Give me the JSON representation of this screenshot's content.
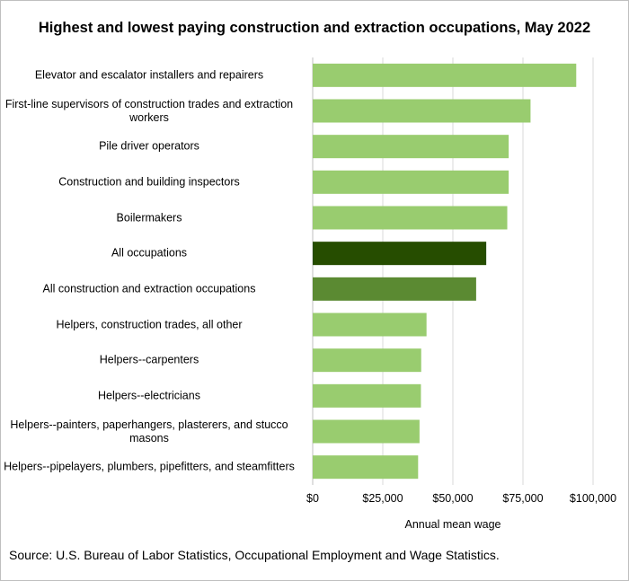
{
  "chart_data": {
    "type": "bar",
    "orientation": "horizontal",
    "title": "Highest and lowest paying construction and extraction occupations, May 2022",
    "categories": [
      "Elevator and escalator installers and repairers",
      "First-line supervisors of construction trades and extraction workers",
      "Pile driver operators",
      "Construction and building inspectors",
      "Boilermakers",
      "All occupations",
      "All construction and extraction occupations",
      "Helpers, construction trades, all other",
      "Helpers--carpenters",
      "Helpers--electricians",
      "Helpers--painters, paperhangers, plasterers, and stucco masons",
      "Helpers--pipelayers, plumbers, pipefitters, and steamfitters"
    ],
    "values": [
      94000,
      77700,
      69900,
      69900,
      69400,
      61900,
      58300,
      40600,
      38700,
      38600,
      38100,
      37600
    ],
    "bar_colors": [
      "#99cc6f",
      "#99cc6f",
      "#99cc6f",
      "#99cc6f",
      "#99cc6f",
      "#264d00",
      "#5b8a32",
      "#99cc6f",
      "#99cc6f",
      "#99cc6f",
      "#99cc6f",
      "#99cc6f"
    ],
    "xlabel": "Annual mean wage",
    "ylabel": "",
    "xlim": [
      0,
      100000
    ],
    "x_ticks": [
      0,
      25000,
      50000,
      75000,
      100000
    ],
    "x_tick_labels": [
      "$0",
      "$25,000",
      "$50,000",
      "$75,000",
      "$100,000"
    ],
    "grid": true,
    "gridline_color": "#d9d9d9",
    "axis_color": "#bfbfbf"
  },
  "source": "Source: U.S. Bureau of Labor Statistics, Occupational Employment and Wage Statistics."
}
